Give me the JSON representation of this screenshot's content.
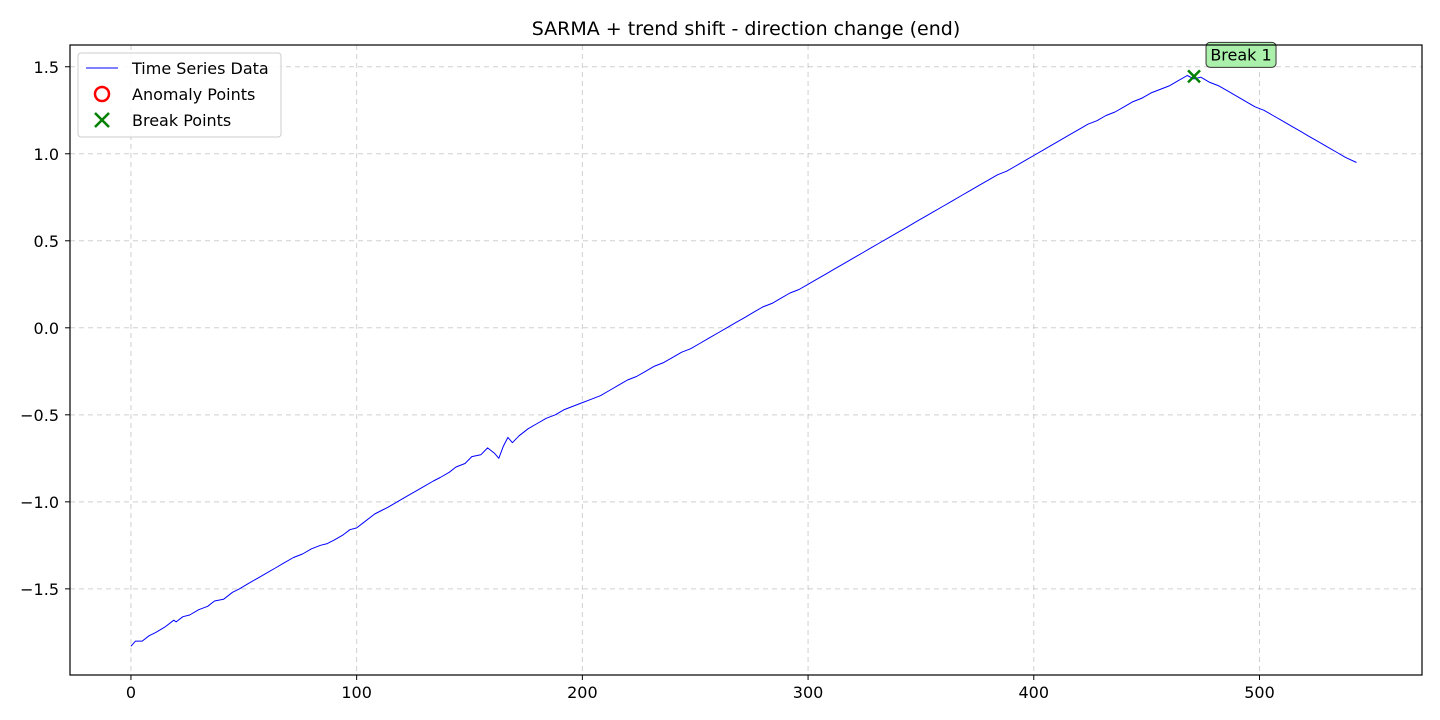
{
  "chart_data": {
    "type": "line",
    "title": "SARMA + trend shift - direction change (end)",
    "xlabel": "",
    "ylabel": "",
    "xlim": [
      -27,
      572
    ],
    "ylim": [
      -1.995,
      1.625
    ],
    "x_ticks": [
      0,
      100,
      200,
      300,
      400,
      500
    ],
    "x_tick_labels": [
      "0",
      "100",
      "200",
      "300",
      "400",
      "500"
    ],
    "y_ticks": [
      -1.5,
      -1.0,
      -0.5,
      0.0,
      0.5,
      1.0,
      1.5
    ],
    "y_tick_labels": [
      "−1.5",
      "−1.0",
      "−0.5",
      "0.0",
      "0.5",
      "1.0",
      "1.5"
    ],
    "grid": true,
    "legend": {
      "placement": "top-left",
      "entries": [
        {
          "label": "Time Series Data",
          "marker": "line",
          "color": "#0000ff"
        },
        {
          "label": "Anomaly Points",
          "marker": "circle",
          "color": "#ff0000"
        },
        {
          "label": "Break Points",
          "marker": "x",
          "color": "#008000"
        }
      ]
    },
    "series": [
      {
        "name": "Time Series Data",
        "color": "#0000ff",
        "x": [
          0,
          2,
          5,
          8,
          11,
          15,
          19,
          20,
          23,
          26,
          30,
          34,
          37,
          41,
          45,
          48,
          52,
          56,
          60,
          64,
          68,
          72,
          76,
          80,
          84,
          87,
          90,
          94,
          97,
          100,
          103,
          108,
          111,
          114,
          118,
          122,
          126,
          130,
          134,
          137,
          141,
          144,
          148,
          151,
          155,
          158,
          161,
          163,
          165,
          167,
          169,
          172,
          176,
          180,
          184,
          188,
          192,
          196,
          200,
          204,
          208,
          212,
          216,
          220,
          224,
          228,
          232,
          236,
          240,
          244,
          248,
          252,
          256,
          260,
          264,
          268,
          272,
          276,
          280,
          284,
          288,
          292,
          296,
          300,
          304,
          308,
          312,
          316,
          320,
          324,
          328,
          332,
          336,
          340,
          344,
          348,
          352,
          356,
          360,
          364,
          368,
          372,
          376,
          380,
          384,
          388,
          392,
          396,
          400,
          404,
          408,
          412,
          416,
          420,
          424,
          428,
          432,
          436,
          440,
          444,
          448,
          452,
          456,
          460,
          464,
          468,
          471,
          474,
          478,
          482,
          486,
          490,
          494,
          498,
          502,
          506,
          510,
          514,
          518,
          522,
          526,
          530,
          534,
          538,
          543
        ],
        "values": [
          -1.83,
          -1.8,
          -1.8,
          -1.77,
          -1.75,
          -1.72,
          -1.68,
          -1.69,
          -1.66,
          -1.65,
          -1.62,
          -1.6,
          -1.57,
          -1.56,
          -1.52,
          -1.5,
          -1.47,
          -1.44,
          -1.41,
          -1.38,
          -1.35,
          -1.32,
          -1.3,
          -1.27,
          -1.25,
          -1.24,
          -1.22,
          -1.19,
          -1.16,
          -1.15,
          -1.12,
          -1.07,
          -1.05,
          -1.03,
          -1.0,
          -0.97,
          -0.94,
          -0.91,
          -0.88,
          -0.86,
          -0.83,
          -0.8,
          -0.78,
          -0.74,
          -0.73,
          -0.69,
          -0.72,
          -0.75,
          -0.68,
          -0.63,
          -0.66,
          -0.62,
          -0.58,
          -0.55,
          -0.52,
          -0.5,
          -0.47,
          -0.45,
          -0.43,
          -0.41,
          -0.39,
          -0.36,
          -0.33,
          -0.3,
          -0.28,
          -0.25,
          -0.22,
          -0.2,
          -0.17,
          -0.14,
          -0.12,
          -0.09,
          -0.06,
          -0.03,
          0.0,
          0.03,
          0.06,
          0.09,
          0.12,
          0.14,
          0.17,
          0.2,
          0.22,
          0.25,
          0.28,
          0.31,
          0.34,
          0.37,
          0.4,
          0.43,
          0.46,
          0.49,
          0.52,
          0.55,
          0.58,
          0.61,
          0.64,
          0.67,
          0.7,
          0.73,
          0.76,
          0.79,
          0.82,
          0.85,
          0.88,
          0.9,
          0.93,
          0.96,
          0.99,
          1.02,
          1.05,
          1.08,
          1.11,
          1.14,
          1.17,
          1.19,
          1.22,
          1.24,
          1.27,
          1.3,
          1.32,
          1.35,
          1.37,
          1.39,
          1.42,
          1.45,
          1.43,
          1.44,
          1.41,
          1.39,
          1.36,
          1.33,
          1.3,
          1.27,
          1.25,
          1.22,
          1.19,
          1.16,
          1.13,
          1.1,
          1.07,
          1.04,
          1.01,
          0.98,
          0.95
        ]
      }
    ],
    "anomaly_points": [],
    "break_points": [
      {
        "x": 471,
        "y": 1.445,
        "label": "Break 1"
      }
    ]
  }
}
